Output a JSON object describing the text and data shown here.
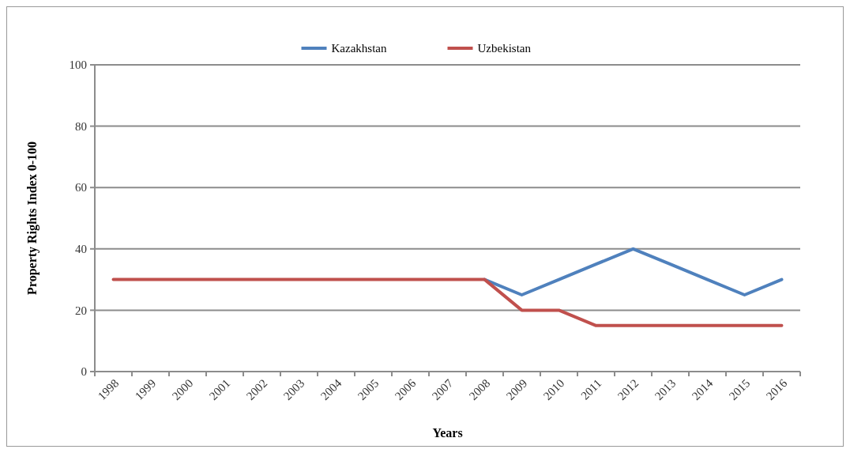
{
  "chart_data": {
    "type": "line",
    "xlabel": "Years",
    "ylabel": "Property Rights Index 0-100",
    "categories": [
      "1998",
      "1999",
      "2000",
      "2001",
      "2002",
      "2003",
      "2004",
      "2005",
      "2006",
      "2007",
      "2008",
      "2009",
      "2010",
      "2011",
      "2012",
      "2013",
      "2014",
      "2015",
      "2016"
    ],
    "series": [
      {
        "name": "Kazakhstan",
        "color": "#4f81bd",
        "values": [
          null,
          null,
          null,
          null,
          null,
          null,
          null,
          null,
          null,
          null,
          30,
          25,
          30,
          35,
          40,
          35,
          30,
          25,
          30
        ]
      },
      {
        "name": "Uzbekistan",
        "color": "#c0504d",
        "values": [
          30,
          30,
          30,
          30,
          30,
          30,
          30,
          30,
          30,
          30,
          30,
          20,
          20,
          15,
          15,
          15,
          15,
          15,
          15
        ]
      }
    ],
    "ylim": [
      0,
      100
    ],
    "yticks": [
      0,
      20,
      40,
      60,
      80,
      100
    ],
    "grid": "y",
    "legend": "top",
    "marker": "none",
    "line_style": "solid"
  }
}
